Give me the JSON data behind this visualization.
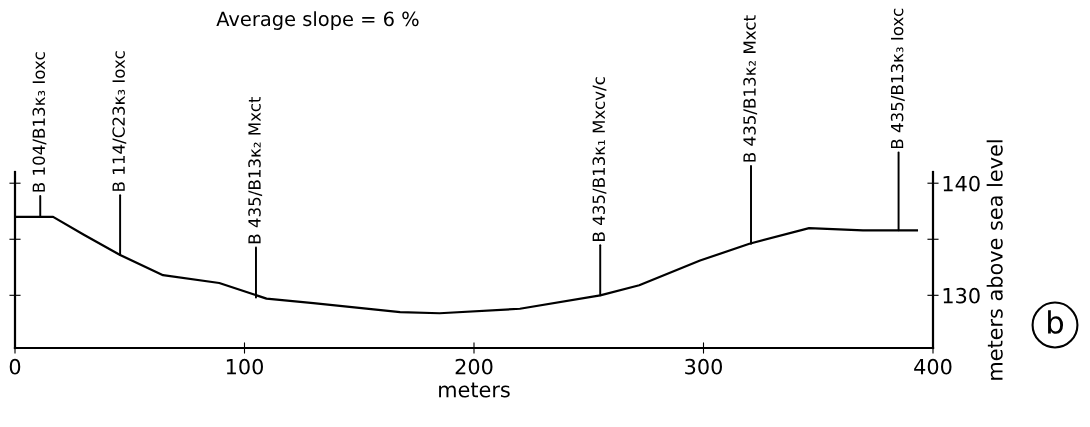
{
  "chart_data": {
    "type": "line",
    "title": "Average slope = 6 %",
    "xlabel": "meters",
    "ylabel": "meters above sea level",
    "x": [
      0.7,
      16.6,
      30,
      45.8,
      64.5,
      89,
      109.6,
      130,
      167.8,
      185,
      220,
      255,
      272,
      298.5,
      320,
      346,
      369.5,
      393
    ],
    "series": [
      {
        "color": "#000000",
        "values": [
          137.0,
          137.0,
          135.4,
          133.6,
          131.8,
          131.1,
          129.7,
          129.3,
          128.5,
          128.4,
          128.8,
          130.0,
          130.9,
          133.1,
          134.6,
          136.0,
          135.8,
          135.8
        ]
      }
    ],
    "xlim": [
      0,
      400
    ],
    "xticks": [
      0,
      100,
      200,
      300,
      400
    ],
    "ylim": [
      125.3,
      141
    ],
    "yticks": [
      130,
      {
        "value": 135,
        "label": null
      },
      140
    ],
    "grid": false,
    "legend": false,
    "marker": "none",
    "line_style": "solid",
    "annotations": [
      "b",
      {
        "text": "B 104/B13κ₃ Ioxc",
        "x": 11,
        "y": 137.0
      },
      {
        "text": "B 114/C23κ₃ Ioxc",
        "x": 45.8,
        "y": 133.6
      },
      {
        "text": "B 435/B13κ₂ Mxct",
        "x": 105,
        "y": 129.8
      },
      {
        "text": "B 435/B13κ₁ Mxcv/c",
        "x": 255,
        "y": 130.0
      },
      {
        "text": "B 435/B13κ₂ Mxct",
        "x": 320.7,
        "y": 134.6
      },
      {
        "text": "B 435/B13κ₃ Ioxc",
        "x": 385,
        "y": 135.8
      }
    ]
  }
}
